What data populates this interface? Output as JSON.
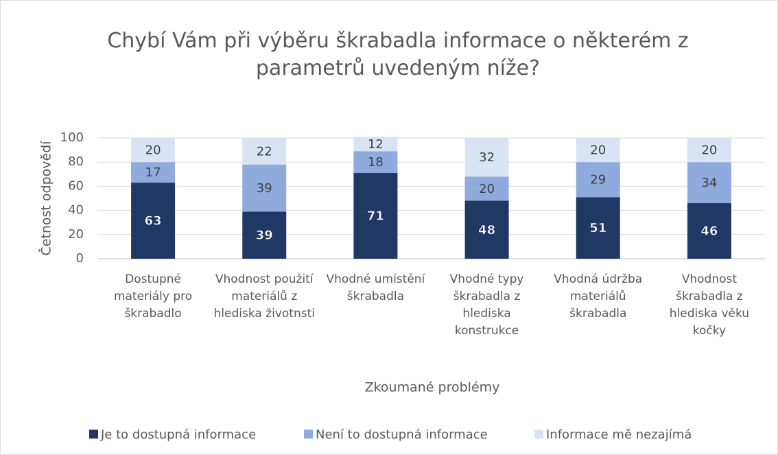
{
  "chart_data": {
    "type": "bar",
    "stacked": true,
    "title": "Chybí Vám při výběru škrabadla informace o některém z parametrů uvedeným níže?",
    "x_label": "Zkoumané problémy",
    "y_label": "Četnost odpovědí",
    "categories": [
      "Dostupné materiály pro škrabadlo",
      "Vhodnost použití materiálů z hlediska životnsti",
      "Vhodné umístění škrabadla",
      "Vhodné typy škrabadla z hlediska konstrukce",
      "Vhodná údržba materiálů škrabadla",
      "Vhodnost škrabadla z hlediska věku kočky"
    ],
    "series": [
      {
        "name": "Je to dostupná informace",
        "color": "#203864",
        "values": [
          63,
          39,
          71,
          48,
          51,
          46
        ]
      },
      {
        "name": "Není to dostupná informace",
        "color": "#8faadc",
        "values": [
          17,
          39,
          18,
          20,
          29,
          34
        ]
      },
      {
        "name": "Informace mě nezajímá",
        "color": "#dae3f3",
        "values": [
          20,
          22,
          12,
          32,
          20,
          20
        ]
      }
    ],
    "ylim": [
      0,
      100
    ],
    "yticks": [
      0,
      20,
      40,
      60,
      80,
      100
    ],
    "grid": true,
    "legend": "bottom"
  }
}
